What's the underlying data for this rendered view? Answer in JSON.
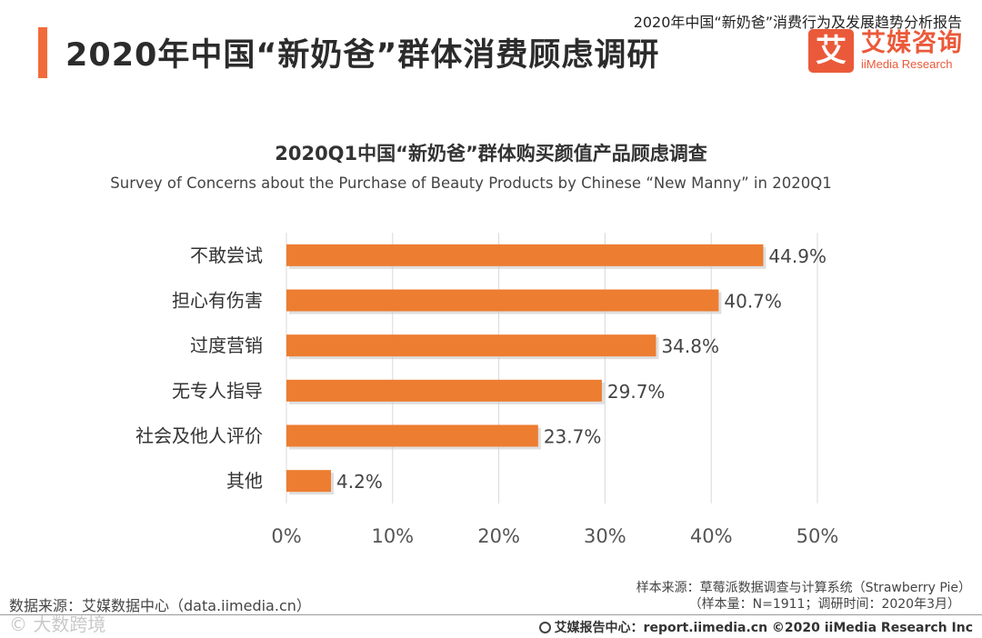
{
  "header": {
    "title": "2020年中国“新奶爸”群体消费顾虑调研",
    "report_name": "2020年中国“新奶爸”消费行为及发展趋势分析报告",
    "brand_badge": "艾",
    "brand_cn": "艾媒咨询",
    "brand_en": "iiMedia Research"
  },
  "chart_data": {
    "type": "bar",
    "orientation": "horizontal",
    "title": "2020Q1中国“新奶爸”群体购买颜值产品顾虑调查",
    "subtitle": "Survey of Concerns about the Purchase of Beauty Products by Chinese “New Manny” in 2020Q1",
    "categories": [
      "不敢尝试",
      "担心有伤害",
      "过度营销",
      "无专人指导",
      "社会及他人评价",
      "其他"
    ],
    "values": [
      44.9,
      40.7,
      34.8,
      29.7,
      23.7,
      4.2
    ],
    "value_labels": [
      "44.9%",
      "40.7%",
      "34.8%",
      "29.7%",
      "23.7%",
      "4.2%"
    ],
    "xlim": [
      0,
      50
    ],
    "ticks": [
      0,
      10,
      20,
      30,
      40,
      50
    ],
    "tick_labels": [
      "0%",
      "10%",
      "20%",
      "30%",
      "40%",
      "50%"
    ],
    "grid": "vertical",
    "bar_color": "#ed7d31",
    "legend": "none"
  },
  "footer": {
    "source": "数据来源：艾媒数据中心（data.iimedia.cn）",
    "sample_line1": "样本来源：草莓派数据调查与计算系统（Strawberry Pie）",
    "sample_line2": "（样本量：N=1911；调研时间：2020年3月）",
    "report_center": "艾媒报告中心：report.iimedia.cn  ©2020  iiMedia Research  Inc",
    "watermark": "© 大数跨境"
  }
}
